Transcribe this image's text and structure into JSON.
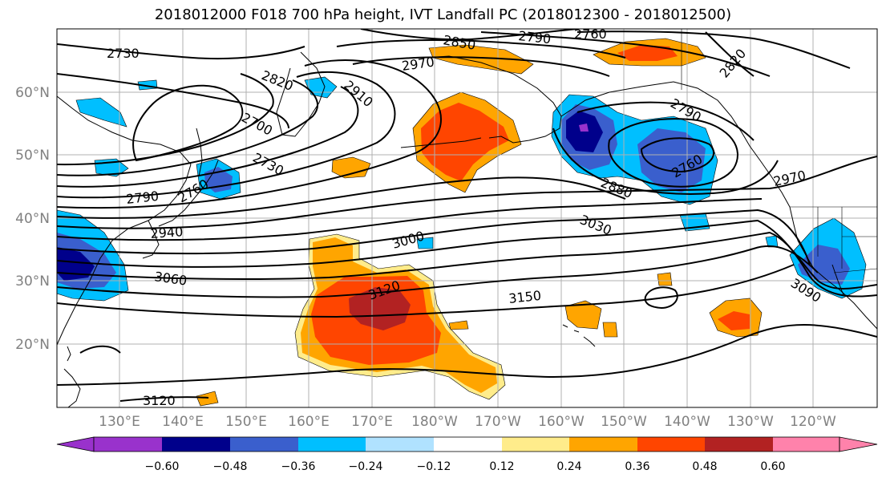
{
  "title": "2018012000 F018 700 hPa height, IVT Landfall PC (2018012300 - 2018012500)",
  "map": {
    "lat_labels": [
      "60°N",
      "50°N",
      "40°N",
      "30°N",
      "20°N"
    ],
    "lon_labels": [
      "130°E",
      "140°E",
      "150°E",
      "160°E",
      "170°E",
      "180°W",
      "170°W",
      "160°W",
      "150°W",
      "140°W",
      "130°W",
      "120°W"
    ],
    "contour_labels": [
      "2730",
      "2850",
      "2790",
      "2760",
      "2970",
      "2820",
      "2910",
      "2820",
      "2700",
      "2790",
      "2730",
      "2760",
      "2790",
      "2880",
      "2760",
      "2970",
      "3030",
      "2940",
      "3000",
      "3060",
      "3120",
      "3150",
      "3090",
      "3120"
    ],
    "colors": {
      "frame": "#000000",
      "grid": "#b0b0b0",
      "contour": "#000000",
      "coast": "#000000"
    }
  },
  "colorbar": {
    "tick_labels": [
      "−0.60",
      "−0.48",
      "−0.36",
      "−0.24",
      "−0.12",
      "0.12",
      "0.24",
      "0.36",
      "0.48",
      "0.60"
    ],
    "colors": [
      "#9932cc",
      "#00008b",
      "#3a5fcd",
      "#00bfff",
      "#b0e2ff",
      "#ffffff",
      "#ffec8b",
      "#ffa500",
      "#ff4500",
      "#b22222",
      "#ff82ab"
    ]
  }
}
